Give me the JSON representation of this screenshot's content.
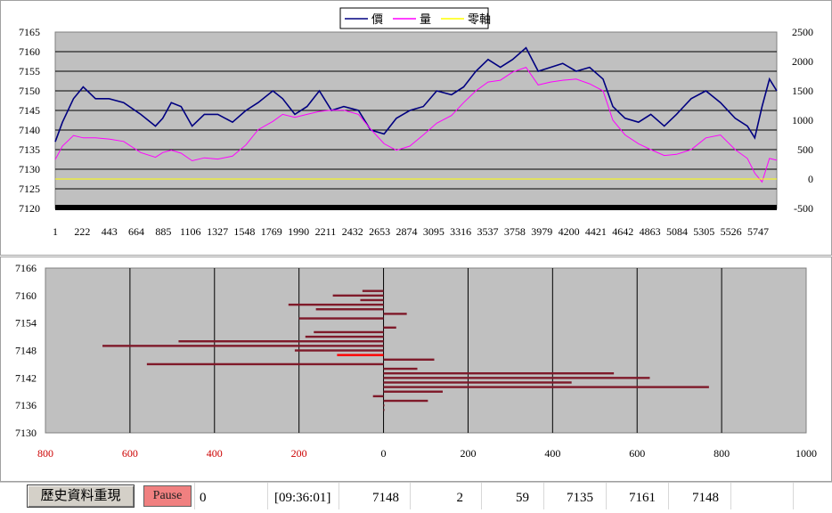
{
  "chart_data": [
    {
      "type": "line",
      "legend": {
        "placement": "top-center",
        "entries": [
          "價",
          "量",
          "零軸"
        ]
      },
      "y_left": {
        "ticks": [
          7165,
          7160,
          7155,
          7150,
          7145,
          7140,
          7135,
          7130,
          7125,
          7120
        ],
        "range": [
          7120,
          7165
        ]
      },
      "y_right": {
        "ticks": [
          2500,
          2000,
          1500,
          1000,
          500,
          0,
          -500
        ],
        "range": [
          -500,
          2500
        ]
      },
      "x_ticks": [
        1,
        222,
        443,
        664,
        885,
        1106,
        1327,
        1548,
        1769,
        1990,
        2211,
        2432,
        2653,
        2874,
        3095,
        3316,
        3537,
        3758,
        3979,
        4200,
        4421,
        4642,
        4863,
        5084,
        5305,
        5526,
        5747
      ],
      "x_range": [
        1,
        5900
      ],
      "grid": true,
      "series": [
        {
          "name": "價",
          "axis": "left",
          "color": "#000080",
          "x": [
            1,
            60,
            150,
            230,
            330,
            440,
            560,
            700,
            820,
            880,
            950,
            1030,
            1120,
            1220,
            1330,
            1450,
            1560,
            1660,
            1780,
            1860,
            1960,
            2060,
            2160,
            2260,
            2360,
            2480,
            2580,
            2690,
            2790,
            2900,
            3010,
            3120,
            3240,
            3340,
            3440,
            3540,
            3640,
            3740,
            3850,
            3950,
            4050,
            4150,
            4260,
            4370,
            4480,
            4560,
            4660,
            4770,
            4870,
            4980,
            5080,
            5200,
            5320,
            5440,
            5560,
            5660,
            5720,
            5780,
            5840,
            5900
          ],
          "values": [
            7137,
            7142,
            7148,
            7151,
            7148,
            7148,
            7147,
            7144,
            7141,
            7143,
            7147,
            7146,
            7141,
            7144,
            7144,
            7142,
            7145,
            7147,
            7150,
            7148,
            7144,
            7146,
            7150,
            7145,
            7146,
            7145,
            7140,
            7139,
            7143,
            7145,
            7146,
            7150,
            7149,
            7151,
            7155,
            7158,
            7156,
            7158,
            7161,
            7155,
            7156,
            7157,
            7155,
            7156,
            7153,
            7146,
            7143,
            7142,
            7144,
            7141,
            7144,
            7148,
            7150,
            7147,
            7143,
            7141,
            7138,
            7146,
            7153,
            7150
          ]
        },
        {
          "name": "量",
          "axis": "right",
          "color": "#ff00ff",
          "x": [
            1,
            60,
            150,
            230,
            330,
            440,
            560,
            700,
            820,
            880,
            950,
            1030,
            1120,
            1220,
            1330,
            1450,
            1560,
            1660,
            1780,
            1860,
            1960,
            2060,
            2160,
            2260,
            2360,
            2480,
            2580,
            2690,
            2790,
            2900,
            3010,
            3120,
            3240,
            3340,
            3440,
            3540,
            3640,
            3740,
            3850,
            3950,
            4050,
            4150,
            4260,
            4370,
            4480,
            4560,
            4660,
            4770,
            4870,
            4980,
            5080,
            5200,
            5320,
            5440,
            5560,
            5660,
            5720,
            5780,
            5840,
            5900
          ],
          "values": [
            330,
            560,
            740,
            700,
            700,
            680,
            640,
            450,
            370,
            450,
            490,
            440,
            310,
            360,
            340,
            390,
            580,
            840,
            980,
            1100,
            1050,
            1100,
            1150,
            1170,
            1170,
            1100,
            850,
            600,
            490,
            560,
            750,
            950,
            1080,
            1300,
            1500,
            1650,
            1680,
            1820,
            1900,
            1600,
            1650,
            1680,
            1700,
            1620,
            1500,
            1000,
            750,
            600,
            500,
            400,
            420,
            500,
            700,
            750,
            500,
            350,
            100,
            -50,
            350,
            320
          ]
        },
        {
          "name": "零軸",
          "axis": "right",
          "color": "#ffff00",
          "x": [
            1,
            5900
          ],
          "values": [
            0,
            0
          ]
        }
      ]
    },
    {
      "type": "bar",
      "orientation": "horizontal",
      "y_ticks": [
        7166,
        7160,
        7154,
        7148,
        7142,
        7136,
        7130
      ],
      "y_range": [
        7130,
        7166
      ],
      "x_ticks_left": [
        800,
        600,
        400,
        200
      ],
      "x_ticks_right": [
        0,
        200,
        400,
        600,
        800,
        1000
      ],
      "x_range": [
        -800,
        1000
      ],
      "left_tick_color": "#cc0000",
      "grid": true,
      "bar_color": "#7f1a2a",
      "highlight_color": "#ff0000",
      "highlight_price": 7147,
      "bars": [
        {
          "price": 7161,
          "value": -50
        },
        {
          "price": 7160,
          "value": -120
        },
        {
          "price": 7159,
          "value": -55
        },
        {
          "price": 7158,
          "value": -225
        },
        {
          "price": 7157,
          "value": -160
        },
        {
          "price": 7156,
          "value": 55
        },
        {
          "price": 7155,
          "value": -200
        },
        {
          "price": 7153,
          "value": 30
        },
        {
          "price": 7152,
          "value": -165
        },
        {
          "price": 7151,
          "value": -185
        },
        {
          "price": 7150,
          "value": -485
        },
        {
          "price": 7149,
          "value": -665
        },
        {
          "price": 7148,
          "value": -210
        },
        {
          "price": 7147,
          "value": -110
        },
        {
          "price": 7146,
          "value": 120
        },
        {
          "price": 7145,
          "value": -560
        },
        {
          "price": 7144,
          "value": 80
        },
        {
          "price": 7143,
          "value": 545
        },
        {
          "price": 7142,
          "value": 630
        },
        {
          "price": 7141,
          "value": 445
        },
        {
          "price": 7140,
          "value": 770
        },
        {
          "price": 7139,
          "value": 140
        },
        {
          "price": 7138,
          "value": -25
        },
        {
          "price": 7137,
          "value": 105
        },
        {
          "price": 7136,
          "value": 2
        },
        {
          "price": 7135,
          "value": 2
        }
      ]
    }
  ],
  "status_bar": {
    "history_button": "歷史資料重現",
    "pause_button": "Pause",
    "counter": "0",
    "time": "[09:36:01]",
    "price": "7148",
    "qty": "2",
    "count": "59",
    "low": "7135",
    "high": "7161",
    "last": "7148"
  }
}
